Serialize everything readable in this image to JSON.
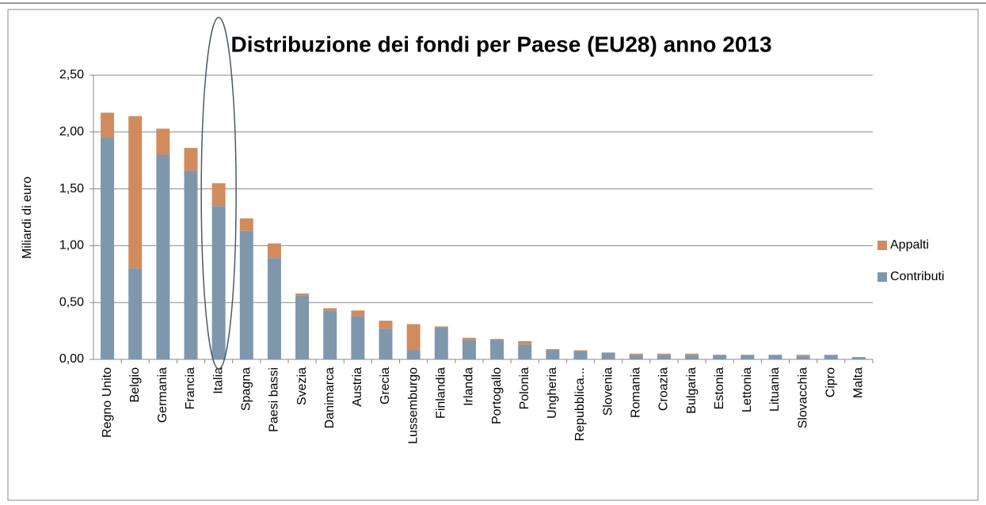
{
  "chart_data": {
    "type": "bar",
    "stacked": true,
    "title": "Distribuzione dei fondi per Paese (EU28) anno 2013",
    "y_label": "Miliardi di euro",
    "categories": [
      "Regno Unito",
      "Belgio",
      "Germania",
      "Francia",
      "Italia",
      "Spagna",
      "Paesi bassi",
      "Svezia",
      "Danimarca",
      "Austria",
      "Grecia",
      "Lussemburgo",
      "Finlandia",
      "Irlanda",
      "Portogallo",
      "Polonia",
      "Ungheria",
      "Repubblica...",
      "Slovenia",
      "Romania",
      "Croazia",
      "Bulgaria",
      "Estonia",
      "Lettonia",
      "Lituania",
      "Slovacchia",
      "Cipro",
      "Malta"
    ],
    "series": [
      {
        "name": "Contributi",
        "color": "#7f97ad",
        "values": [
          1.95,
          0.8,
          1.8,
          1.66,
          1.35,
          1.13,
          0.89,
          0.56,
          0.43,
          0.38,
          0.27,
          0.08,
          0.28,
          0.17,
          0.17,
          0.13,
          0.08,
          0.07,
          0.06,
          0.04,
          0.04,
          0.04,
          0.04,
          0.04,
          0.04,
          0.03,
          0.04,
          0.02
        ]
      },
      {
        "name": "Appalti",
        "color": "#d08c5c",
        "values": [
          0.22,
          1.34,
          0.23,
          0.2,
          0.2,
          0.11,
          0.13,
          0.02,
          0.02,
          0.05,
          0.07,
          0.23,
          0.01,
          0.02,
          0.01,
          0.03,
          0.01,
          0.01,
          0,
          0.01,
          0.01,
          0.01,
          0,
          0,
          0,
          0.01,
          0,
          0
        ]
      }
    ],
    "ylim": [
      0,
      2.5
    ],
    "yticks": [
      {
        "value": 0,
        "label": "0,00"
      },
      {
        "value": 0.5,
        "label": "0,50"
      },
      {
        "value": 1,
        "label": "1,00"
      },
      {
        "value": 1.5,
        "label": "1,50"
      },
      {
        "value": 2,
        "label": "2,00"
      },
      {
        "value": 2.5,
        "label": "2,50"
      }
    ],
    "grid": true,
    "legend": "right"
  }
}
